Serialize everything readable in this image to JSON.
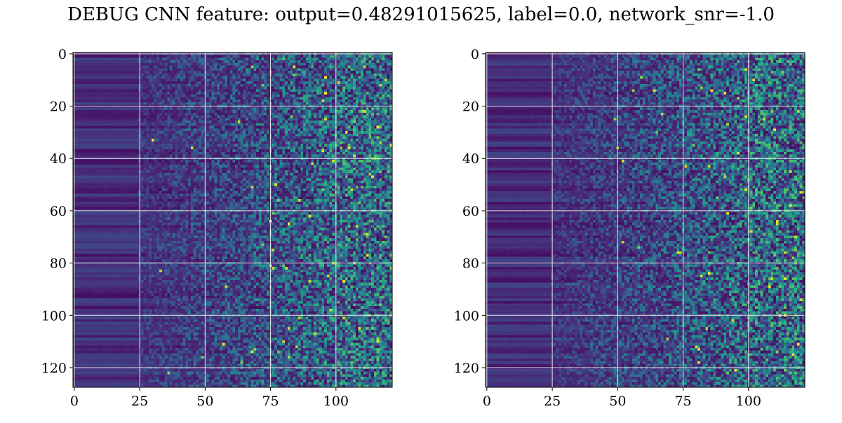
{
  "figure": {
    "title": "DEBUG CNN feature: output=0.48291015625, label=0.0, network_snr=-1.0"
  },
  "colors": {
    "colormap": "viridis",
    "grid": "#e8e8e8",
    "axes": "#000000"
  },
  "chart_data": [
    {
      "type": "heatmap",
      "title": "",
      "xlabel": "",
      "ylabel": "",
      "n_rows": 128,
      "n_cols": 122,
      "xlim": [
        -0.5,
        121.5
      ],
      "ylim": [
        127.5,
        -0.5
      ],
      "y_inverted": true,
      "colormap": "viridis",
      "grid": true,
      "x_ticks": [
        0,
        25,
        50,
        75,
        100
      ],
      "x_tick_labels": [
        "0",
        "25",
        "50",
        "75",
        "100"
      ],
      "y_ticks": [
        0,
        20,
        40,
        60,
        80,
        100,
        120
      ],
      "y_tick_labels": [
        "0",
        "20",
        "40",
        "60",
        "80",
        "100",
        "120"
      ],
      "seed": 7,
      "hotspots": [
        [
          25,
          96
        ],
        [
          36,
          105
        ],
        [
          41,
          99
        ],
        [
          66,
          108
        ],
        [
          75,
          76
        ],
        [
          82,
          76
        ],
        [
          85,
          97
        ],
        [
          98,
          98
        ],
        [
          101,
          103
        ],
        [
          105,
          109
        ],
        [
          107,
          92
        ],
        [
          110,
          116
        ],
        [
          62,
          90
        ],
        [
          18,
          95
        ],
        [
          30,
          104
        ],
        [
          47,
          114
        ]
      ]
    },
    {
      "type": "heatmap",
      "title": "",
      "xlabel": "",
      "ylabel": "",
      "n_rows": 128,
      "n_cols": 122,
      "xlim": [
        -0.5,
        121.5
      ],
      "ylim": [
        127.5,
        -0.5
      ],
      "y_inverted": true,
      "colormap": "viridis",
      "grid": true,
      "x_ticks": [
        0,
        25,
        50,
        75,
        100
      ],
      "x_tick_labels": [
        "0",
        "25",
        "50",
        "75",
        "100"
      ],
      "y_ticks": [
        0,
        20,
        40,
        60,
        80,
        100,
        120
      ],
      "y_tick_labels": [
        "0",
        "20",
        "40",
        "60",
        "80",
        "100",
        "120"
      ],
      "seed": 19,
      "hotspots": [
        [
          6,
          99
        ],
        [
          29,
          110
        ],
        [
          43,
          76
        ],
        [
          52,
          99
        ],
        [
          58,
          116
        ],
        [
          65,
          111
        ],
        [
          76,
          74
        ],
        [
          85,
          82
        ],
        [
          89,
          108
        ],
        [
          102,
          94
        ],
        [
          111,
          119
        ],
        [
          113,
          81
        ],
        [
          121,
          95
        ],
        [
          70,
          118
        ],
        [
          100,
          112
        ],
        [
          14,
          86
        ]
      ]
    }
  ]
}
